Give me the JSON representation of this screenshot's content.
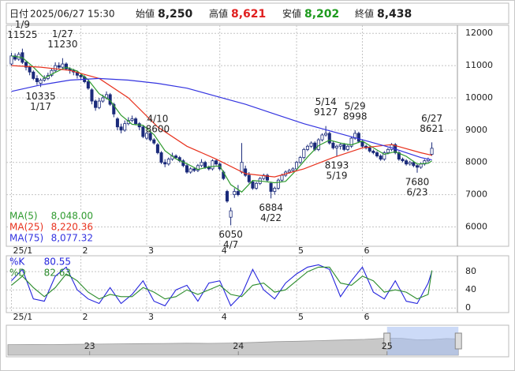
{
  "header": {
    "items": [
      {
        "label": "日付",
        "value": "2025/06/27 15:30"
      },
      {
        "label": "始値",
        "value": "8,250"
      },
      {
        "label": "高値",
        "value": "8,621"
      },
      {
        "label": "安値",
        "value": "8,202"
      },
      {
        "label": "終値",
        "value": "8,438"
      }
    ]
  },
  "chart_data": [
    {
      "type": "candlestick",
      "up_color": "#ffffff",
      "down_color": "#1a2a7a",
      "edge_color": "#1a2a7a",
      "grid": true,
      "legend": "lower left",
      "xlim": [
        -1.4,
        122
      ],
      "xticks": [
        {
          "value": 0,
          "label": "25/1"
        },
        {
          "value": 19,
          "label": "2"
        },
        {
          "value": 37,
          "label": "3"
        },
        {
          "value": 57,
          "label": "4"
        },
        {
          "value": 78,
          "label": "5"
        },
        {
          "value": 96,
          "label": "6"
        }
      ],
      "ylim": [
        5400,
        12250
      ],
      "yticks": [
        6000,
        7000,
        8000,
        9000,
        10000,
        11000,
        12000
      ],
      "open": [
        11050,
        11300,
        11200,
        11400,
        11100,
        10950,
        10800,
        10600,
        10450,
        10550,
        10600,
        10700,
        10850,
        11000,
        10950,
        11050,
        10900,
        10850,
        10800,
        10700,
        10650,
        10500,
        10250,
        9900,
        9700,
        9900,
        10000,
        10100,
        9800,
        9350,
        9100,
        9000,
        9200,
        9300,
        9350,
        9200,
        9100,
        8750,
        8900,
        8700,
        8550,
        8300,
        8000,
        7950,
        8100,
        8200,
        8150,
        8050,
        7900,
        7700,
        7800,
        7750,
        7900,
        8000,
        7850,
        7800,
        8050,
        7950,
        7700,
        7100,
        6300,
        7000,
        7100,
        7700,
        7800,
        7600,
        7400,
        7200,
        7350,
        7500,
        7600,
        7350,
        7100,
        7200,
        7450,
        7600,
        7700,
        7750,
        7800,
        8000,
        8150,
        8400,
        8500,
        8600,
        8400,
        8700,
        8850,
        8900,
        8600,
        8450,
        8500,
        8550,
        8400,
        8500,
        8750,
        8900,
        8650,
        8500,
        8450,
        8350,
        8300,
        8200,
        8100,
        8300,
        8400,
        8550,
        8300,
        8100,
        8050,
        7950,
        8000,
        7900,
        7850,
        7950,
        8050,
        8250
      ],
      "high": [
        11400,
        11380,
        11420,
        11525,
        11150,
        11000,
        10850,
        10700,
        10600,
        10700,
        10780,
        10900,
        11100,
        11100,
        11230,
        11100,
        10950,
        10900,
        10850,
        10750,
        10700,
        10550,
        10300,
        9950,
        10000,
        10100,
        10200,
        10150,
        9850,
        9400,
        9200,
        9300,
        9400,
        9450,
        9400,
        9250,
        9150,
        8950,
        8950,
        8750,
        8600,
        8350,
        8100,
        8150,
        8300,
        8250,
        8200,
        8100,
        7950,
        7850,
        7850,
        7950,
        8100,
        8050,
        7900,
        8100,
        8100,
        8000,
        7750,
        7150,
        6600,
        7200,
        7300,
        8600,
        7900,
        7700,
        7450,
        7400,
        7550,
        7650,
        7650,
        7400,
        7250,
        7500,
        7650,
        7750,
        7800,
        7850,
        8050,
        8200,
        8450,
        8550,
        8650,
        8650,
        8750,
        8900,
        9127,
        8950,
        8650,
        8550,
        8600,
        8600,
        8550,
        8800,
        8998,
        8950,
        8700,
        8550,
        8500,
        8400,
        8350,
        8250,
        8350,
        8450,
        8600,
        8600,
        8350,
        8150,
        8100,
        8050,
        8050,
        7950,
        8000,
        8100,
        8150,
        8621
      ],
      "low": [
        11000,
        11150,
        11150,
        11050,
        10850,
        10700,
        10550,
        10400,
        10335,
        10500,
        10550,
        10650,
        10800,
        10900,
        10900,
        10850,
        10750,
        10700,
        10600,
        10550,
        10450,
        10250,
        9800,
        9600,
        9650,
        9850,
        9950,
        9750,
        9400,
        9000,
        8900,
        8950,
        9150,
        9250,
        9150,
        9000,
        8750,
        8700,
        8650,
        8550,
        8250,
        7950,
        7850,
        7900,
        8050,
        8100,
        8000,
        7850,
        7650,
        7650,
        7700,
        7700,
        7850,
        7800,
        7750,
        7750,
        7900,
        7750,
        7450,
        6750,
        6050,
        6900,
        6950,
        7650,
        7550,
        7350,
        7150,
        7150,
        7300,
        7450,
        7400,
        6884,
        7000,
        7150,
        7400,
        7550,
        7650,
        7700,
        7750,
        7950,
        8100,
        8350,
        8450,
        8350,
        8350,
        8650,
        8800,
        8550,
        8400,
        8193,
        8400,
        8350,
        8350,
        8450,
        8700,
        8600,
        8450,
        8400,
        8300,
        8250,
        8150,
        8050,
        8050,
        8250,
        8350,
        8250,
        8050,
        8000,
        7900,
        7900,
        7850,
        7680,
        7800,
        7900,
        8000,
        8202
      ],
      "close": [
        11300,
        11200,
        11350,
        11100,
        10950,
        10800,
        10600,
        10500,
        10550,
        10600,
        10700,
        10850,
        11000,
        10950,
        11050,
        10900,
        10850,
        10800,
        10700,
        10650,
        10500,
        10300,
        9900,
        9700,
        9900,
        10000,
        10100,
        9800,
        9500,
        9100,
        9000,
        9200,
        9300,
        9350,
        9200,
        9100,
        8800,
        8900,
        8700,
        8600,
        8300,
        8000,
        7950,
        8100,
        8200,
        8150,
        8050,
        7900,
        7700,
        7800,
        7750,
        7900,
        8000,
        7850,
        7800,
        8050,
        7950,
        7800,
        7500,
        6800,
        6500,
        7100,
        7000,
        8000,
        7600,
        7400,
        7200,
        7350,
        7500,
        7600,
        7450,
        7100,
        7200,
        7450,
        7600,
        7700,
        7750,
        7800,
        8000,
        8150,
        8400,
        8500,
        8600,
        8400,
        8700,
        8850,
        8900,
        8600,
        8450,
        8500,
        8550,
        8400,
        8500,
        8750,
        8900,
        8650,
        8500,
        8450,
        8350,
        8300,
        8200,
        8100,
        8300,
        8400,
        8550,
        8300,
        8100,
        8050,
        7950,
        8000,
        7900,
        7850,
        7950,
        8050,
        8100,
        8438
      ],
      "lines": [
        {
          "name": "MA(5)",
          "color": "#2e9a2e",
          "x": [
            0,
            3,
            6,
            9,
            12,
            15,
            18,
            21,
            24,
            27,
            30,
            33,
            36,
            39,
            42,
            45,
            48,
            51,
            54,
            57,
            60,
            63,
            66,
            69,
            72,
            75,
            78,
            81,
            84,
            87,
            90,
            93,
            96,
            99,
            102,
            105,
            108,
            111,
            114,
            115
          ],
          "values": [
            11300,
            11250,
            10950,
            10610,
            10790,
            10950,
            10830,
            10560,
            10130,
            9920,
            9460,
            9180,
            9150,
            8860,
            8360,
            8110,
            7960,
            7780,
            7860,
            7890,
            7310,
            7080,
            7440,
            7410,
            7370,
            7410,
            7770,
            8170,
            8520,
            8690,
            8600,
            8540,
            8660,
            8450,
            8250,
            8330,
            8190,
            7950,
            7970,
            8048
          ],
          "value_labels": [
            null,
            null,
            null,
            null,
            null,
            null,
            null,
            null,
            null,
            null,
            null,
            null,
            null,
            null,
            null,
            null,
            null,
            null,
            null,
            null,
            null,
            null,
            null,
            null,
            null,
            null,
            null,
            null,
            null,
            null,
            null,
            null,
            null,
            null,
            null,
            null,
            null,
            null,
            null,
            "8,048.00"
          ]
        },
        {
          "name": "MA(25)",
          "color": "#e8321e",
          "x": [
            0,
            8,
            16,
            24,
            32,
            40,
            48,
            56,
            64,
            72,
            80,
            88,
            96,
            104,
            112,
            115
          ],
          "values": [
            11000,
            10950,
            10850,
            10600,
            10000,
            9100,
            8500,
            8100,
            7650,
            7550,
            7800,
            8150,
            8450,
            8550,
            8300,
            8220.36
          ],
          "value_labels": [
            null,
            null,
            null,
            null,
            null,
            null,
            null,
            null,
            null,
            null,
            null,
            null,
            null,
            null,
            null,
            "8,220.36"
          ]
        },
        {
          "name": "MA(75)",
          "color": "#3434e0",
          "x": [
            0,
            8,
            16,
            24,
            32,
            40,
            48,
            56,
            64,
            72,
            80,
            88,
            96,
            104,
            112,
            115
          ],
          "values": [
            10200,
            10400,
            10550,
            10600,
            10550,
            10450,
            10300,
            10050,
            9800,
            9500,
            9200,
            8950,
            8700,
            8450,
            8150,
            8077.32
          ],
          "value_labels": [
            null,
            null,
            null,
            null,
            null,
            null,
            null,
            null,
            null,
            null,
            null,
            null,
            null,
            null,
            null,
            "8,077.32"
          ]
        }
      ],
      "annotations": [
        {
          "date": "1/9",
          "value": 11525
        },
        {
          "date": "1/27",
          "value": 11230
        },
        {
          "date": "1/17",
          "value": 10335
        },
        {
          "date": "4/10",
          "value": 8600
        },
        {
          "date": "4/7",
          "value": 6050
        },
        {
          "date": "4/22",
          "value": 6884
        },
        {
          "date": "5/14",
          "value": 9127
        },
        {
          "date": "5/19",
          "value": 8193
        },
        {
          "date": "5/29",
          "value": 8998
        },
        {
          "date": "6/23",
          "value": 7680
        },
        {
          "date": "6/27",
          "value": 8621
        }
      ]
    },
    {
      "type": "line",
      "legend": "upper left",
      "xlim": [
        -1.4,
        122
      ],
      "xticks": [
        {
          "value": 0,
          "label": "25/1"
        },
        {
          "value": 19,
          "label": "2"
        },
        {
          "value": 37,
          "label": "3"
        },
        {
          "value": 57,
          "label": "4"
        },
        {
          "value": 78,
          "label": "5"
        },
        {
          "value": 96,
          "label": "6"
        }
      ],
      "ylim": [
        -10,
        115
      ],
      "yticks": [
        0,
        40,
        80
      ],
      "series": [
        {
          "name": "%K",
          "color": "#2424dd",
          "x": [
            0,
            3,
            6,
            9,
            12,
            15,
            18,
            21,
            24,
            27,
            30,
            33,
            36,
            39,
            42,
            45,
            48,
            51,
            54,
            57,
            60,
            63,
            66,
            69,
            72,
            75,
            78,
            81,
            84,
            87,
            90,
            93,
            96,
            99,
            102,
            105,
            108,
            111,
            114,
            115
          ],
          "values": [
            60,
            85,
            20,
            15,
            70,
            90,
            40,
            20,
            10,
            45,
            10,
            30,
            60,
            15,
            5,
            40,
            50,
            15,
            55,
            60,
            5,
            30,
            85,
            40,
            20,
            55,
            75,
            90,
            95,
            85,
            25,
            60,
            90,
            35,
            20,
            60,
            15,
            10,
            55,
            80.55
          ]
        },
        {
          "name": "%D",
          "color": "#2c8c2c",
          "x": [
            0,
            3,
            6,
            9,
            12,
            15,
            18,
            21,
            24,
            27,
            30,
            33,
            36,
            39,
            42,
            45,
            48,
            51,
            54,
            57,
            60,
            63,
            66,
            69,
            72,
            75,
            78,
            81,
            84,
            87,
            90,
            93,
            96,
            99,
            102,
            105,
            108,
            111,
            114,
            115
          ],
          "values": [
            50,
            70,
            45,
            25,
            45,
            75,
            60,
            35,
            20,
            30,
            25,
            25,
            45,
            35,
            20,
            25,
            40,
            30,
            40,
            50,
            30,
            25,
            50,
            55,
            35,
            40,
            60,
            80,
            90,
            90,
            55,
            50,
            70,
            60,
            35,
            40,
            35,
            20,
            30,
            82.63
          ]
        }
      ]
    },
    {
      "type": "area",
      "color": "#c8c8c8",
      "selection_color": "#aac2f2",
      "xlim": [
        2022.45,
        2025.5
      ],
      "xticks": [
        {
          "value": 2023,
          "label": "23"
        },
        {
          "value": 2024,
          "label": "24"
        },
        {
          "value": 2025,
          "label": "25"
        }
      ],
      "ylim": [
        0,
        14000
      ],
      "selection": [
        2025,
        2025.48
      ],
      "x": [
        2022.45,
        2022.6,
        2022.75,
        2022.9,
        2023.05,
        2023.2,
        2023.35,
        2023.5,
        2023.65,
        2023.8,
        2023.95,
        2024.1,
        2024.25,
        2024.4,
        2024.55,
        2024.7,
        2024.85,
        2025,
        2025.1,
        2025.2,
        2025.3,
        2025.4,
        2025.48
      ],
      "values": [
        5200,
        5300,
        5250,
        5400,
        5500,
        5600,
        5700,
        5800,
        5900,
        5850,
        6000,
        6300,
        6700,
        6900,
        7200,
        7500,
        7800,
        8400,
        8300,
        7600,
        7700,
        8200,
        8000
      ]
    }
  ]
}
